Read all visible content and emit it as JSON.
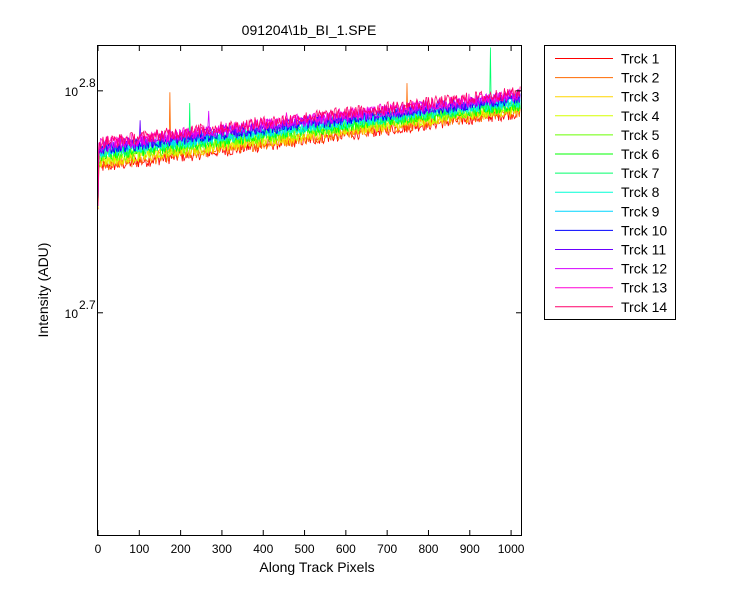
{
  "chart_data": {
    "type": "line",
    "title": "091204\\1b_BI_1.SPE",
    "xlabel": "Along Track Pixels",
    "ylabel": "Intensity (ADU)",
    "xlim": [
      0,
      1024
    ],
    "ylim": [
      398,
      661
    ],
    "yscale": "log",
    "grid": false,
    "legend_position": "outside-right",
    "x_ticks": [
      0,
      100,
      200,
      300,
      400,
      500,
      600,
      700,
      800,
      900,
      1000
    ],
    "y_ticks": [
      {
        "value": 501.19,
        "base": "10",
        "exponent": "2.7"
      },
      {
        "value": 630.96,
        "base": "10",
        "exponent": "2.8"
      }
    ],
    "series": [
      {
        "name": "Trck 1",
        "color": "#ff0000",
        "start": 583,
        "end": 617,
        "noise": 4,
        "spikes": []
      },
      {
        "name": "Trck 2",
        "color": "#ff6a00",
        "start": 584,
        "end": 618,
        "noise": 4,
        "spikes": [
          {
            "x": 173,
            "y": 630
          },
          {
            "x": 748,
            "y": 636
          }
        ]
      },
      {
        "name": "Trck 3",
        "color": "#ffd500",
        "start": 586,
        "end": 619,
        "noise": 4,
        "spikes": []
      },
      {
        "name": "Trck 4",
        "color": "#d5ff00",
        "start": 587,
        "end": 620,
        "noise": 4,
        "spikes": []
      },
      {
        "name": "Trck 5",
        "color": "#6aff00",
        "start": 589,
        "end": 621,
        "noise": 4,
        "spikes": []
      },
      {
        "name": "Trck 6",
        "color": "#00ff00",
        "start": 590,
        "end": 622,
        "noise": 4,
        "spikes": []
      },
      {
        "name": "Trck 7",
        "color": "#00ff6a",
        "start": 591,
        "end": 623,
        "noise": 4,
        "spikes": [
          {
            "x": 222,
            "y": 623
          },
          {
            "x": 950,
            "y": 660
          }
        ]
      },
      {
        "name": "Trck 8",
        "color": "#00ffd5",
        "start": 592,
        "end": 624,
        "noise": 4,
        "spikes": [
          {
            "x": 925,
            "y": 622
          }
        ]
      },
      {
        "name": "Trck 9",
        "color": "#00d5ff",
        "start": 593,
        "end": 625,
        "noise": 4,
        "spikes": []
      },
      {
        "name": "Trck 10",
        "color": "#0000ff",
        "start": 594,
        "end": 626,
        "noise": 4,
        "spikes": []
      },
      {
        "name": "Trck 11",
        "color": "#6a00ff",
        "start": 595,
        "end": 627,
        "noise": 4,
        "spikes": [
          {
            "x": 102,
            "y": 612
          },
          {
            "x": 694,
            "y": 622
          }
        ]
      },
      {
        "name": "Trck 12",
        "color": "#d500ff",
        "start": 596,
        "end": 628,
        "noise": 4,
        "spikes": [
          {
            "x": 268,
            "y": 618
          }
        ]
      },
      {
        "name": "Trck 13",
        "color": "#ff00d5",
        "start": 597,
        "end": 629,
        "noise": 4,
        "spikes": [
          {
            "x": 455,
            "y": 617
          },
          {
            "x": 520,
            "y": 613
          }
        ]
      },
      {
        "name": "Trck 14",
        "color": "#ff006a",
        "start": 598,
        "end": 630,
        "noise": 4,
        "spikes": [
          {
            "x": 250,
            "y": 609
          },
          {
            "x": 640,
            "y": 615
          }
        ]
      }
    ]
  }
}
